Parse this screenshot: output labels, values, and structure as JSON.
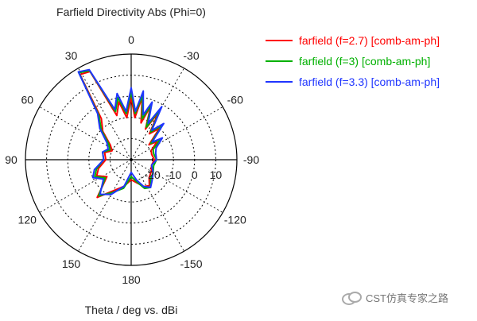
{
  "chart_data": {
    "type": "polar",
    "title": "Farfield Directivity Abs (Phi=0)",
    "xlabel": "Theta / deg vs. dBi",
    "radial_axis": {
      "min": -30,
      "max": 20,
      "ticks": [
        -20,
        -10,
        0,
        10
      ],
      "tick_labels": [
        "-20",
        "-10",
        "0",
        "10"
      ]
    },
    "angular_axis": {
      "ticks": [
        0,
        30,
        60,
        90,
        120,
        150,
        180,
        -150,
        -120,
        -90,
        -60,
        -30
      ],
      "tick_labels": [
        "0",
        "-30",
        "-60",
        "-90",
        "-120",
        "-150",
        "180",
        "150",
        "120",
        "90",
        "60",
        "30"
      ]
    },
    "legend": {
      "position": "right",
      "items": [
        {
          "label": "farfield (f=2.7) [comb-am-ph]",
          "color": "#ff0000"
        },
        {
          "label": "farfield (f=3) [comb-am-ph]",
          "color": "#00b000"
        },
        {
          "label": "farfield (f=3.3) [comb-am-ph]",
          "color": "#1f35ff"
        }
      ]
    },
    "series": [
      {
        "name": "farfield (f=2.7) [comb-am-ph]",
        "color": "#ff0000",
        "points": [
          {
            "theta": -180,
            "value": -20.5
          },
          {
            "theta": -165,
            "value": -18.5
          },
          {
            "theta": -155,
            "value": -16.0
          },
          {
            "theta": -145,
            "value": -15.0
          },
          {
            "theta": -135,
            "value": -18.0
          },
          {
            "theta": -120,
            "value": -19.0
          },
          {
            "theta": -105,
            "value": -20.0
          },
          {
            "theta": -90,
            "value": -19.0
          },
          {
            "theta": -75,
            "value": -20.0
          },
          {
            "theta": -65,
            "value": -19.5
          },
          {
            "theta": -55,
            "value": -15.0
          },
          {
            "theta": -50,
            "value": -19.0
          },
          {
            "theta": -42,
            "value": -10.0
          },
          {
            "theta": -35,
            "value": -15.0
          },
          {
            "theta": -30,
            "value": -4.0
          },
          {
            "theta": -25,
            "value": -14.0
          },
          {
            "theta": -20,
            "value": -3.0
          },
          {
            "theta": -15,
            "value": -12.0
          },
          {
            "theta": -10,
            "value": 0.0
          },
          {
            "theta": -5,
            "value": -10.0
          },
          {
            "theta": 0,
            "value": -0.5
          },
          {
            "theta": 6,
            "value": -10.0
          },
          {
            "theta": 12,
            "value": -2.0
          },
          {
            "theta": 18,
            "value": -8.0
          },
          {
            "theta": 25,
            "value": 16.0
          },
          {
            "theta": 31,
            "value": 17.0
          },
          {
            "theta": 36,
            "value": -6.0
          },
          {
            "theta": 45,
            "value": -11.0
          },
          {
            "theta": 55,
            "value": -18.0
          },
          {
            "theta": 65,
            "value": -20.0
          },
          {
            "theta": 75,
            "value": -17.0
          },
          {
            "theta": 90,
            "value": -18.0
          },
          {
            "theta": 105,
            "value": -14.0
          },
          {
            "theta": 115,
            "value": -12.0
          },
          {
            "theta": 125,
            "value": -16.0
          },
          {
            "theta": 138,
            "value": -6.0
          },
          {
            "theta": 150,
            "value": -13.0
          },
          {
            "theta": 165,
            "value": -17.0
          },
          {
            "theta": 180,
            "value": -20.5
          }
        ]
      },
      {
        "name": "farfield (f=3) [comb-am-ph]",
        "color": "#00b000",
        "points": [
          {
            "theta": -180,
            "value": -22.0
          },
          {
            "theta": -165,
            "value": -19.0
          },
          {
            "theta": -155,
            "value": -15.0
          },
          {
            "theta": -145,
            "value": -14.0
          },
          {
            "theta": -135,
            "value": -17.0
          },
          {
            "theta": -120,
            "value": -18.0
          },
          {
            "theta": -105,
            "value": -19.0
          },
          {
            "theta": -90,
            "value": -18.0
          },
          {
            "theta": -75,
            "value": -19.0
          },
          {
            "theta": -65,
            "value": -18.5
          },
          {
            "theta": -55,
            "value": -13.0
          },
          {
            "theta": -50,
            "value": -18.0
          },
          {
            "theta": -42,
            "value": -8.0
          },
          {
            "theta": -35,
            "value": -14.0
          },
          {
            "theta": -30,
            "value": -2.0
          },
          {
            "theta": -25,
            "value": -13.0
          },
          {
            "theta": -20,
            "value": -2.0
          },
          {
            "theta": -15,
            "value": -10.0
          },
          {
            "theta": -10,
            "value": 1.0
          },
          {
            "theta": -5,
            "value": -8.0
          },
          {
            "theta": 0,
            "value": 2.0
          },
          {
            "theta": 6,
            "value": -8.0
          },
          {
            "theta": 12,
            "value": 0.0
          },
          {
            "theta": 18,
            "value": -6.0
          },
          {
            "theta": 25,
            "value": 16.5
          },
          {
            "theta": 31,
            "value": 18.0
          },
          {
            "theta": 36,
            "value": -4.0
          },
          {
            "theta": 45,
            "value": -10.0
          },
          {
            "theta": 55,
            "value": -17.0
          },
          {
            "theta": 65,
            "value": -19.0
          },
          {
            "theta": 75,
            "value": -16.0
          },
          {
            "theta": 90,
            "value": -17.0
          },
          {
            "theta": 105,
            "value": -13.0
          },
          {
            "theta": 115,
            "value": -11.0
          },
          {
            "theta": 125,
            "value": -15.0
          },
          {
            "theta": 138,
            "value": -7.0
          },
          {
            "theta": 150,
            "value": -12.0
          },
          {
            "theta": 165,
            "value": -16.0
          },
          {
            "theta": 180,
            "value": -22.0
          }
        ]
      },
      {
        "name": "farfield (f=3.3) [comb-am-ph]",
        "color": "#1f35ff",
        "points": [
          {
            "theta": -180,
            "value": -24.0
          },
          {
            "theta": -165,
            "value": -20.0
          },
          {
            "theta": -155,
            "value": -16.0
          },
          {
            "theta": -145,
            "value": -14.0
          },
          {
            "theta": -135,
            "value": -16.0
          },
          {
            "theta": -120,
            "value": -18.0
          },
          {
            "theta": -105,
            "value": -20.0
          },
          {
            "theta": -90,
            "value": -18.0
          },
          {
            "theta": -75,
            "value": -18.0
          },
          {
            "theta": -65,
            "value": -17.0
          },
          {
            "theta": -55,
            "value": -12.0
          },
          {
            "theta": -50,
            "value": -17.0
          },
          {
            "theta": -42,
            "value": -7.0
          },
          {
            "theta": -35,
            "value": -13.0
          },
          {
            "theta": -30,
            "value": -1.0
          },
          {
            "theta": -25,
            "value": -11.0
          },
          {
            "theta": -20,
            "value": -1.0
          },
          {
            "theta": -15,
            "value": -8.0
          },
          {
            "theta": -10,
            "value": 3.0
          },
          {
            "theta": -5,
            "value": -7.0
          },
          {
            "theta": 0,
            "value": 4.0
          },
          {
            "theta": 6,
            "value": -7.0
          },
          {
            "theta": 12,
            "value": 2.0
          },
          {
            "theta": 18,
            "value": -5.0
          },
          {
            "theta": 25,
            "value": 17.0
          },
          {
            "theta": 31,
            "value": 18.5
          },
          {
            "theta": 36,
            "value": -3.0
          },
          {
            "theta": 45,
            "value": -9.0
          },
          {
            "theta": 55,
            "value": -16.0
          },
          {
            "theta": 65,
            "value": -18.0
          },
          {
            "theta": 75,
            "value": -16.0
          },
          {
            "theta": 90,
            "value": -17.0
          },
          {
            "theta": 105,
            "value": -12.0
          },
          {
            "theta": 115,
            "value": -10.0
          },
          {
            "theta": 125,
            "value": -14.0
          },
          {
            "theta": 138,
            "value": -8.0
          },
          {
            "theta": 150,
            "value": -11.0
          },
          {
            "theta": 165,
            "value": -17.0
          },
          {
            "theta": 180,
            "value": -24.0
          }
        ]
      }
    ]
  },
  "watermark": {
    "text": "CST仿真专家之路"
  },
  "colors": {
    "grid": "#000000",
    "text": "#222222",
    "watermark": "#777777"
  }
}
